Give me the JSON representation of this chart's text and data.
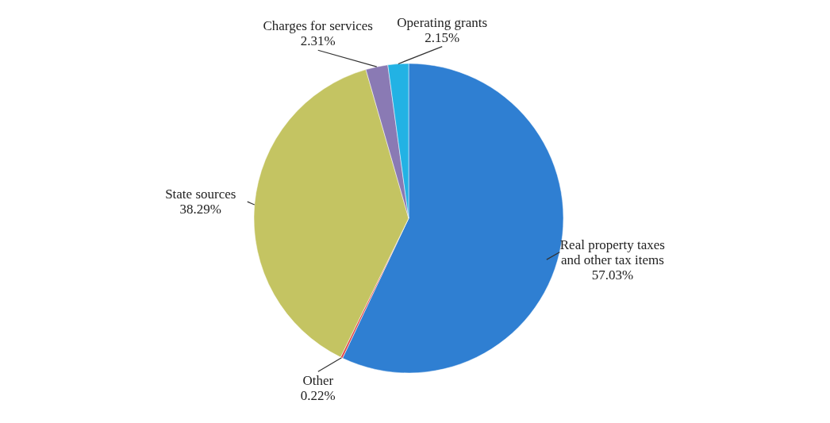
{
  "chart_data": {
    "type": "pie",
    "categories": [
      "Real property taxes and other tax items",
      "Other",
      "State sources",
      "Charges for services",
      "Operating grants"
    ],
    "values": [
      57.03,
      0.22,
      38.29,
      2.31,
      2.15
    ],
    "colors": [
      "#2f7fd2",
      "#e0484a",
      "#c4c462",
      "#8a7ab4",
      "#22b2e4"
    ],
    "value_labels": [
      "57.03%",
      "0.22%",
      "38.29%",
      "2.31%",
      "2.15%"
    ],
    "legend": false
  }
}
